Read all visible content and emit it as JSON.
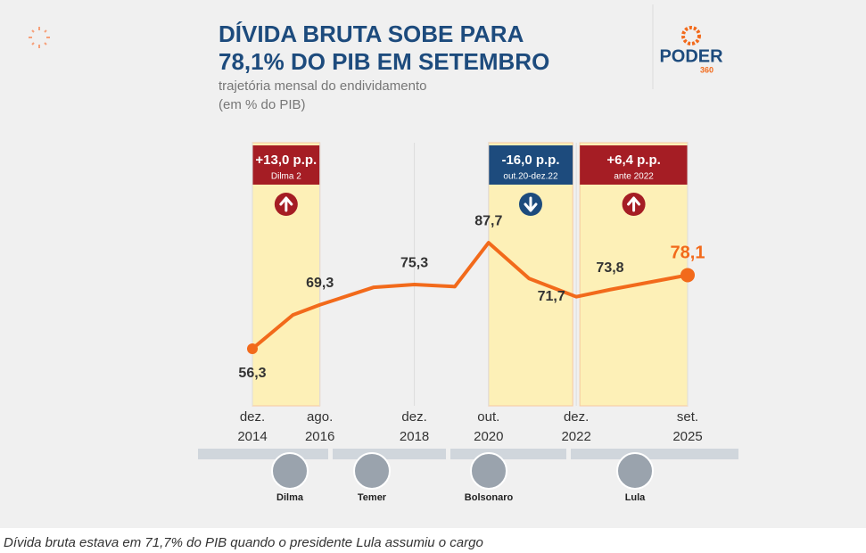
{
  "chart_data": {
    "type": "line",
    "title": [
      "DÍVIDA BRUTA SOBE PARA",
      "78,1% DO PIB EM SETEMBRO"
    ],
    "subtitle": [
      "trajetória mensal do endividamento",
      "(em % do PIB)"
    ],
    "brand": "PODER",
    "brand_sub": "360",
    "x": [
      "2014-12",
      "2015-12",
      "2016-08",
      "2017-12",
      "2018-12",
      "2019-12",
      "2020-10",
      "2021-10",
      "2022-12",
      "2023-10",
      "2025-09"
    ],
    "series": [
      {
        "name": "Dívida bruta",
        "color": "#f26a1b",
        "values": [
          56.3,
          66.3,
          69.3,
          74.5,
          75.3,
          74.7,
          87.7,
          77.1,
          71.7,
          73.8,
          78.1
        ],
        "value_labels": [
          "56,3",
          null,
          "69,3",
          null,
          "75,3",
          null,
          "87,7",
          null,
          "71,7",
          "73,8",
          "78,1"
        ]
      }
    ],
    "ylim": [
      39.4,
      117.3
    ],
    "xticks": [
      {
        "value": "2014-12",
        "label": "dez. 2014"
      },
      {
        "value": "2016-08",
        "label": "ago. 2016"
      },
      {
        "value": "2018-12",
        "label": "dez. 2018"
      },
      {
        "value": "2020-10",
        "label": "out. 2020"
      },
      {
        "value": "2022-12",
        "label": "dez. 2022"
      },
      {
        "value": "2025-09",
        "label": "set. 2025"
      }
    ],
    "annotations": [
      {
        "start": "2014-12",
        "end": "2016-08",
        "text": "+13,0 p.p.",
        "subtext": "Dilma 2",
        "direction": "up",
        "color": "#a51d24"
      },
      {
        "start": "2020-10",
        "end": "2022-12",
        "text": "-16,0 p.p.",
        "subtext": "out.20-dez.22",
        "direction": "down",
        "color": "#1d4b7d"
      },
      {
        "start": "2022-12",
        "end": "2025-09",
        "text": "+6,4 p.p.",
        "subtext": "ante 2022",
        "direction": "up",
        "color": "#a51d24"
      }
    ],
    "presidents": [
      "Dilma",
      "Temer",
      "Bolsonaro",
      "Lula"
    ]
  },
  "caption": "Dívida bruta estava em 71,7% do PIB quando o presidente Lula assumiu o cargo"
}
